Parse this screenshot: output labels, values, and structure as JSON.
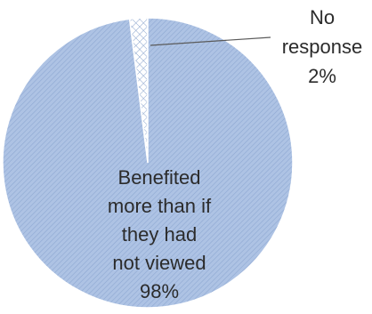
{
  "chart_data": {
    "type": "pie",
    "title": "",
    "slices": [
      {
        "label_lines": [
          "No",
          "response",
          "2%"
        ],
        "value": 2,
        "pattern": "crosshatch"
      },
      {
        "label_lines": [
          "Benefited",
          "more than if",
          "they had",
          "not viewed",
          "98%"
        ],
        "value": 98,
        "pattern": "diagonal"
      }
    ],
    "colors": {
      "fill": "#aec3e4",
      "hatch": "#8ea8d2",
      "crosshatch": "#8fa8cf",
      "crosshatch_bg": "#ffffff",
      "outline": "#ffffff"
    }
  }
}
